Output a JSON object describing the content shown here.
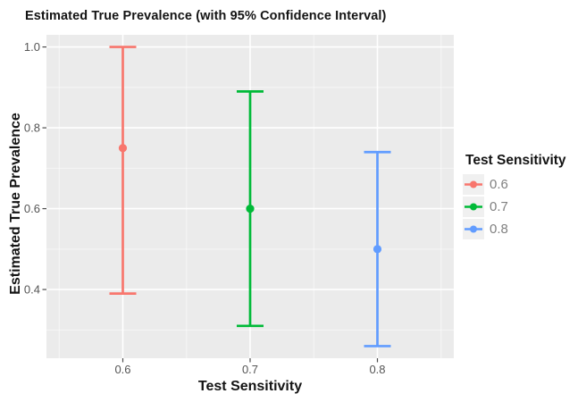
{
  "chart_data": {
    "type": "scatter",
    "subtype": "point-with-errorbar",
    "title": "Estimated True Prevalence (with 95% Confidence Interval)",
    "xlabel": "Test Sensitivity",
    "ylabel": "Estimated True Prevalence",
    "legend_title": "Test Sensitivity",
    "legend_position": "right",
    "grid": true,
    "panel_background": "#EBEBEB",
    "grid_color": "#FFFFFF",
    "legend_key_background": "#F0F0F0",
    "axis_text_color": "#555555",
    "xlim": [
      0.54,
      0.86
    ],
    "ylim": [
      0.23,
      1.03
    ],
    "x_major_ticks": [
      0.6,
      0.7,
      0.8
    ],
    "x_tick_labels": [
      "0.6",
      "0.7",
      "0.8"
    ],
    "x_minor_ticks": [
      0.55,
      0.65,
      0.75,
      0.85
    ],
    "y_major_ticks": [
      1.0,
      0.8,
      0.6,
      0.4
    ],
    "y_tick_labels": [
      "1.0",
      "0.8",
      "0.6",
      "0.4"
    ],
    "y_minor_ticks": [
      0.9,
      0.7,
      0.5,
      0.3
    ],
    "series": [
      {
        "name": "0.6",
        "color": "#F8766D",
        "x": 0.6,
        "estimate": 0.75,
        "ci_lower": 0.39,
        "ci_upper": 1.0
      },
      {
        "name": "0.7",
        "color": "#00BA38",
        "x": 0.7,
        "estimate": 0.6,
        "ci_lower": 0.31,
        "ci_upper": 0.89
      },
      {
        "name": "0.8",
        "color": "#619CFF",
        "x": 0.8,
        "estimate": 0.5,
        "ci_lower": 0.26,
        "ci_upper": 0.74
      }
    ]
  }
}
